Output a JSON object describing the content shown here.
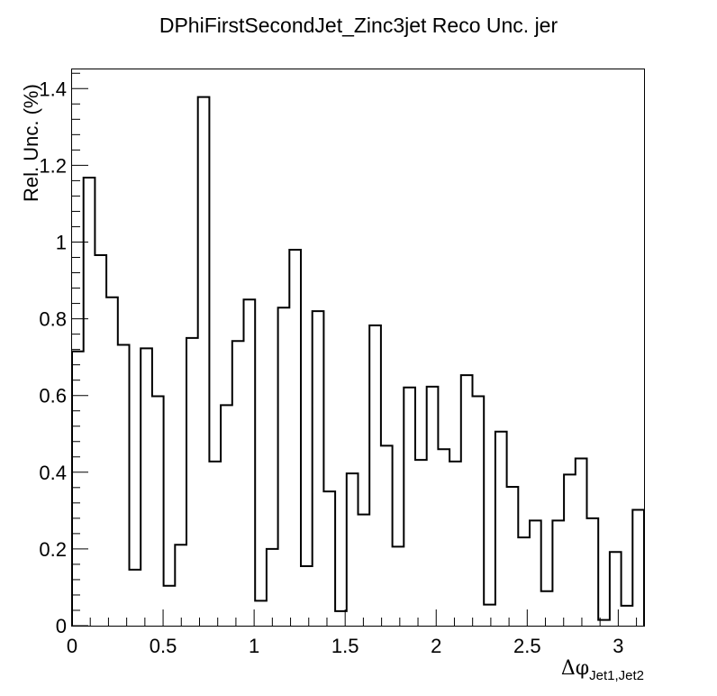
{
  "chart_data": {
    "type": "histogram",
    "title": "DPhiFirstSecondJet_Zinc3jet Reco Unc. jer",
    "ylabel": "Rel. Unc. (%)",
    "xlabel_main": "Δφ",
    "xlabel_sub": "Jet1,Jet2",
    "xlim": [
      0,
      3.1416
    ],
    "ylim": [
      0,
      1.45
    ],
    "x_ticks": [
      0,
      0.5,
      1,
      1.5,
      2,
      2.5,
      3
    ],
    "x_tick_labels": [
      "0",
      "0.5",
      "1",
      "1.5",
      "2",
      "2.5",
      "3"
    ],
    "y_ticks": [
      0,
      0.2,
      0.4,
      0.6,
      0.8,
      1,
      1.2,
      1.4
    ],
    "y_tick_labels": [
      "0",
      "0.2",
      "0.4",
      "0.6",
      "0.8",
      "1",
      "1.2",
      "1.4"
    ],
    "n_bins": 50,
    "values": [
      0.715,
      1.168,
      0.966,
      0.856,
      0.732,
      0.146,
      0.723,
      0.598,
      0.104,
      0.211,
      0.75,
      1.378,
      0.428,
      0.575,
      0.742,
      0.85,
      0.065,
      0.2,
      0.829,
      0.98,
      0.155,
      0.82,
      0.35,
      0.038,
      0.397,
      0.29,
      0.783,
      0.469,
      0.206,
      0.621,
      0.432,
      0.623,
      0.46,
      0.428,
      0.653,
      0.598,
      0.055,
      0.506,
      0.362,
      0.23,
      0.274,
      0.09,
      0.274,
      0.394,
      0.436,
      0.28,
      0.015,
      0.192,
      0.052,
      0.302
    ]
  }
}
